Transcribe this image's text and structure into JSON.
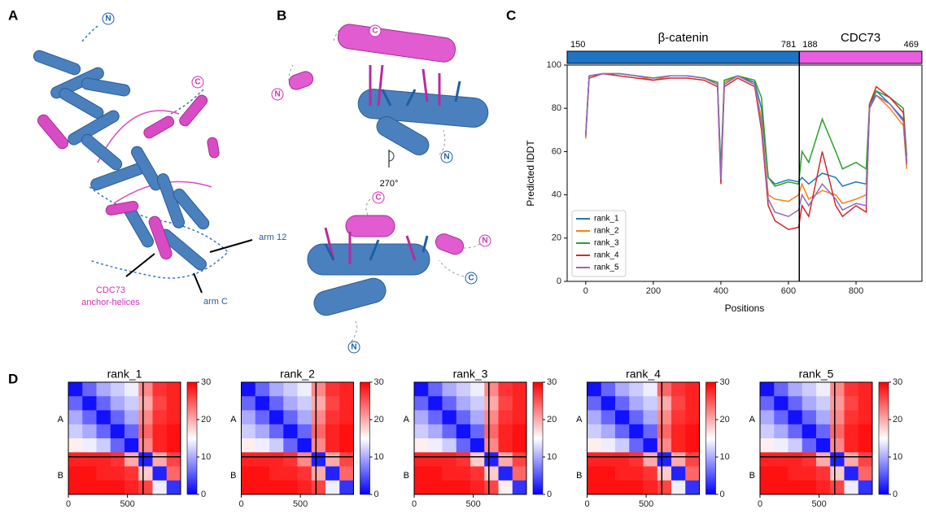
{
  "panel_labels": [
    "A",
    "B",
    "C",
    "D"
  ],
  "structure": {
    "panel_a": {
      "termini": [
        "N",
        "C"
      ],
      "arm_12": "arm 12",
      "arm_c": "arm C",
      "anchor": [
        "CDC73",
        "anchor-helices"
      ]
    },
    "panel_b": {
      "termini_top": [
        "C",
        "N",
        "N"
      ],
      "rotation": "270°",
      "termini_bottom": [
        "C",
        "N",
        "C",
        "N"
      ]
    }
  },
  "chart_data": [
    {
      "type": "line",
      "xlabel": "Positions",
      "ylabel": "Predicted lDDT",
      "xlim": [
        -55,
        995
      ],
      "ylim": [
        0,
        100
      ],
      "xticks": [
        0,
        200,
        400,
        600,
        800
      ],
      "yticks": [
        0,
        20,
        40,
        60,
        80,
        100
      ],
      "divider": 632,
      "legend": "lower-left",
      "domains": [
        {
          "name": "β-catenin",
          "start": 150,
          "end": 781,
          "color": "#1f73c4"
        },
        {
          "name": "CDC73",
          "start": 188,
          "end": 469,
          "color": "#ea5ce0"
        }
      ],
      "x": [
        0,
        10,
        50,
        100,
        150,
        200,
        250,
        300,
        350,
        390,
        400,
        410,
        450,
        500,
        520,
        540,
        560,
        600,
        630,
        640,
        660,
        700,
        740,
        760,
        800,
        830,
        840,
        860,
        900,
        940,
        950
      ],
      "series": [
        {
          "name": "rank_1",
          "color": "#1f77b4",
          "values": [
            68,
            95,
            96,
            96,
            95,
            94,
            95,
            95,
            94,
            92,
            50,
            92,
            95,
            92,
            80,
            48,
            45,
            47,
            46,
            48,
            45,
            50,
            48,
            44,
            46,
            45,
            80,
            88,
            82,
            75,
            55
          ]
        },
        {
          "name": "rank_2",
          "color": "#ff7f0e",
          "values": [
            66,
            95,
            96,
            96,
            95,
            93,
            95,
            95,
            94,
            92,
            48,
            92,
            95,
            91,
            75,
            40,
            38,
            37,
            40,
            45,
            38,
            42,
            40,
            36,
            38,
            40,
            80,
            86,
            80,
            72,
            52
          ]
        },
        {
          "name": "rank_3",
          "color": "#2ca02c",
          "values": [
            68,
            95,
            96,
            96,
            95,
            94,
            95,
            95,
            94,
            92,
            52,
            93,
            95,
            93,
            85,
            48,
            44,
            46,
            45,
            60,
            55,
            75,
            60,
            52,
            55,
            52,
            82,
            88,
            85,
            80,
            58
          ]
        },
        {
          "name": "rank_4",
          "color": "#d62728",
          "values": [
            67,
            94,
            96,
            95,
            94,
            93,
            94,
            94,
            93,
            90,
            45,
            90,
            94,
            90,
            70,
            35,
            28,
            24,
            25,
            35,
            30,
            60,
            35,
            30,
            35,
            32,
            82,
            90,
            85,
            78,
            55
          ]
        },
        {
          "name": "rank_5",
          "color": "#9467bd",
          "values": [
            67,
            95,
            96,
            96,
            95,
            94,
            95,
            95,
            94,
            91,
            47,
            91,
            95,
            91,
            72,
            38,
            32,
            30,
            33,
            40,
            35,
            45,
            38,
            33,
            36,
            35,
            80,
            86,
            82,
            74,
            54
          ]
        }
      ]
    },
    {
      "type": "heatmap",
      "xlim": [
        0,
        950
      ],
      "xticks": [
        0,
        500
      ],
      "divider": 632,
      "row_groups": [
        "A",
        "B"
      ],
      "clim": [
        0,
        30
      ],
      "cticks": [
        0,
        10,
        20,
        30
      ],
      "panels": [
        {
          "title": "rank_1",
          "matrix": [
            [
              1,
              6,
              10,
              12,
              14,
              22,
              27,
              28
            ],
            [
              6,
              1,
              6,
              10,
              12,
              20,
              26,
              28
            ],
            [
              10,
              6,
              1,
              6,
              10,
              22,
              27,
              28
            ],
            [
              12,
              10,
              6,
              1,
              6,
              24,
              28,
              29
            ],
            [
              16,
              14,
              12,
              6,
              1,
              22,
              28,
              29
            ],
            [
              28,
              28,
              28,
              27,
              20,
              2,
              20,
              26
            ],
            [
              29,
              29,
              28,
              28,
              27,
              18,
              2,
              24
            ],
            [
              29,
              29,
              29,
              29,
              28,
              26,
              14,
              3
            ]
          ]
        },
        {
          "title": "rank_2",
          "matrix": [
            [
              1,
              6,
              10,
              12,
              14,
              22,
              27,
              28
            ],
            [
              6,
              1,
              6,
              10,
              12,
              20,
              26,
              28
            ],
            [
              10,
              6,
              1,
              6,
              10,
              22,
              27,
              28
            ],
            [
              12,
              10,
              6,
              1,
              6,
              24,
              28,
              29
            ],
            [
              16,
              14,
              12,
              6,
              1,
              22,
              28,
              29
            ],
            [
              28,
              28,
              28,
              27,
              22,
              2,
              20,
              26
            ],
            [
              29,
              29,
              28,
              28,
              27,
              20,
              2,
              24
            ],
            [
              29,
              29,
              29,
              29,
              28,
              26,
              14,
              3
            ]
          ]
        },
        {
          "title": "rank_3",
          "matrix": [
            [
              1,
              6,
              10,
              12,
              14,
              22,
              27,
              28
            ],
            [
              6,
              1,
              6,
              10,
              12,
              20,
              26,
              28
            ],
            [
              10,
              6,
              1,
              6,
              10,
              22,
              27,
              28
            ],
            [
              12,
              10,
              6,
              1,
              6,
              24,
              28,
              29
            ],
            [
              16,
              14,
              12,
              6,
              1,
              22,
              28,
              29
            ],
            [
              28,
              28,
              28,
              27,
              18,
              2,
              20,
              26
            ],
            [
              29,
              29,
              28,
              28,
              27,
              18,
              2,
              24
            ],
            [
              29,
              29,
              29,
              29,
              28,
              26,
              16,
              3
            ]
          ]
        },
        {
          "title": "rank_4",
          "matrix": [
            [
              1,
              6,
              10,
              12,
              14,
              24,
              27,
              28
            ],
            [
              6,
              1,
              6,
              10,
              12,
              20,
              26,
              28
            ],
            [
              10,
              6,
              1,
              6,
              10,
              22,
              27,
              28
            ],
            [
              12,
              10,
              6,
              1,
              6,
              24,
              28,
              29
            ],
            [
              16,
              14,
              12,
              6,
              1,
              22,
              28,
              29
            ],
            [
              28,
              28,
              28,
              27,
              20,
              2,
              20,
              26
            ],
            [
              29,
              29,
              28,
              28,
              27,
              18,
              2,
              24
            ],
            [
              29,
              29,
              29,
              29,
              28,
              26,
              14,
              3
            ]
          ]
        },
        {
          "title": "rank_5",
          "matrix": [
            [
              1,
              6,
              10,
              12,
              14,
              22,
              27,
              28
            ],
            [
              6,
              1,
              6,
              10,
              12,
              21,
              26,
              28
            ],
            [
              10,
              6,
              1,
              6,
              10,
              22,
              27,
              28
            ],
            [
              12,
              10,
              6,
              1,
              6,
              24,
              28,
              29
            ],
            [
              16,
              14,
              12,
              6,
              1,
              22,
              28,
              29
            ],
            [
              28,
              28,
              28,
              27,
              20,
              2,
              20,
              26
            ],
            [
              29,
              29,
              28,
              28,
              27,
              18,
              2,
              24
            ],
            [
              29,
              29,
              29,
              29,
              28,
              26,
              14,
              3
            ]
          ]
        }
      ]
    }
  ]
}
